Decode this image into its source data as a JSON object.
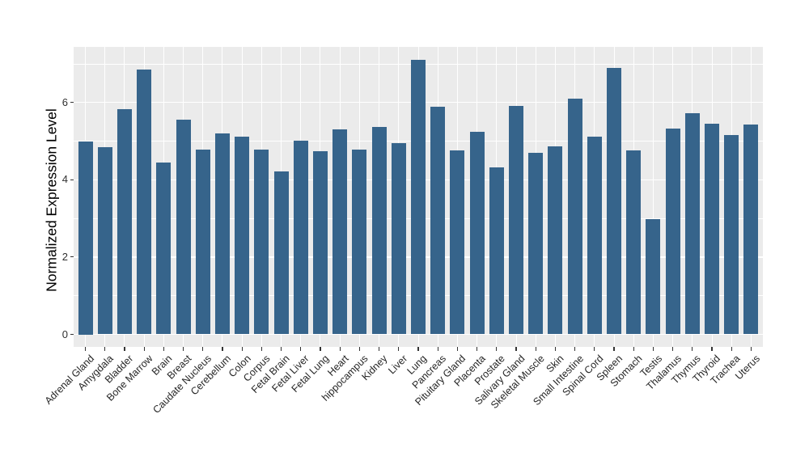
{
  "figure": {
    "background": "#FFFFFF"
  },
  "chart_data": {
    "type": "bar",
    "title": "",
    "xlabel": "",
    "ylabel": "Normalized Expression Level",
    "categories": [
      "Adrenal Gland",
      "Amygdala",
      "Bladder",
      "Bone Marrow",
      "Brain",
      "Breast",
      "Caudate Nucleus",
      "Cerebellum",
      "Colon",
      "Corpus",
      "Fetal Brain",
      "Fetal Liver",
      "Fetal Lung",
      "Heart",
      "hippocampus",
      "Kidney",
      "Liver",
      "Lung",
      "Pancreas",
      "Pituitary Gland",
      "Placenta",
      "Prostate",
      "Salivary Gland",
      "Skeletal Muscle",
      "Skin",
      "Small Intestine",
      "Spinal Cord",
      "Spleen",
      "Stomach",
      "Testis",
      "Thalamus",
      "Thymus",
      "Thyroid",
      "Trachea",
      "Uterus"
    ],
    "values": [
      5.0,
      4.85,
      5.83,
      6.85,
      4.45,
      5.56,
      4.78,
      5.2,
      5.11,
      4.79,
      4.22,
      5.01,
      4.74,
      5.3,
      4.78,
      5.36,
      4.95,
      7.1,
      5.88,
      4.75,
      5.24,
      4.31,
      5.91,
      4.69,
      4.86,
      6.1,
      5.11,
      6.89,
      4.75,
      2.99,
      5.32,
      5.73,
      5.45,
      5.16,
      5.43
    ],
    "yticks": [
      0,
      2,
      4,
      6
    ],
    "yticks_minor": [
      1,
      3,
      5,
      7
    ],
    "ylim": [
      -0.36,
      7.46
    ],
    "x_label_angle": -45,
    "grid": "on",
    "legend": "none",
    "bar_color": "#36648B",
    "panel_background": "#EBEBEB",
    "grid_color": "#FFFFFF",
    "axis_text_color": "#303030",
    "tick_mark_color": "#333333"
  }
}
